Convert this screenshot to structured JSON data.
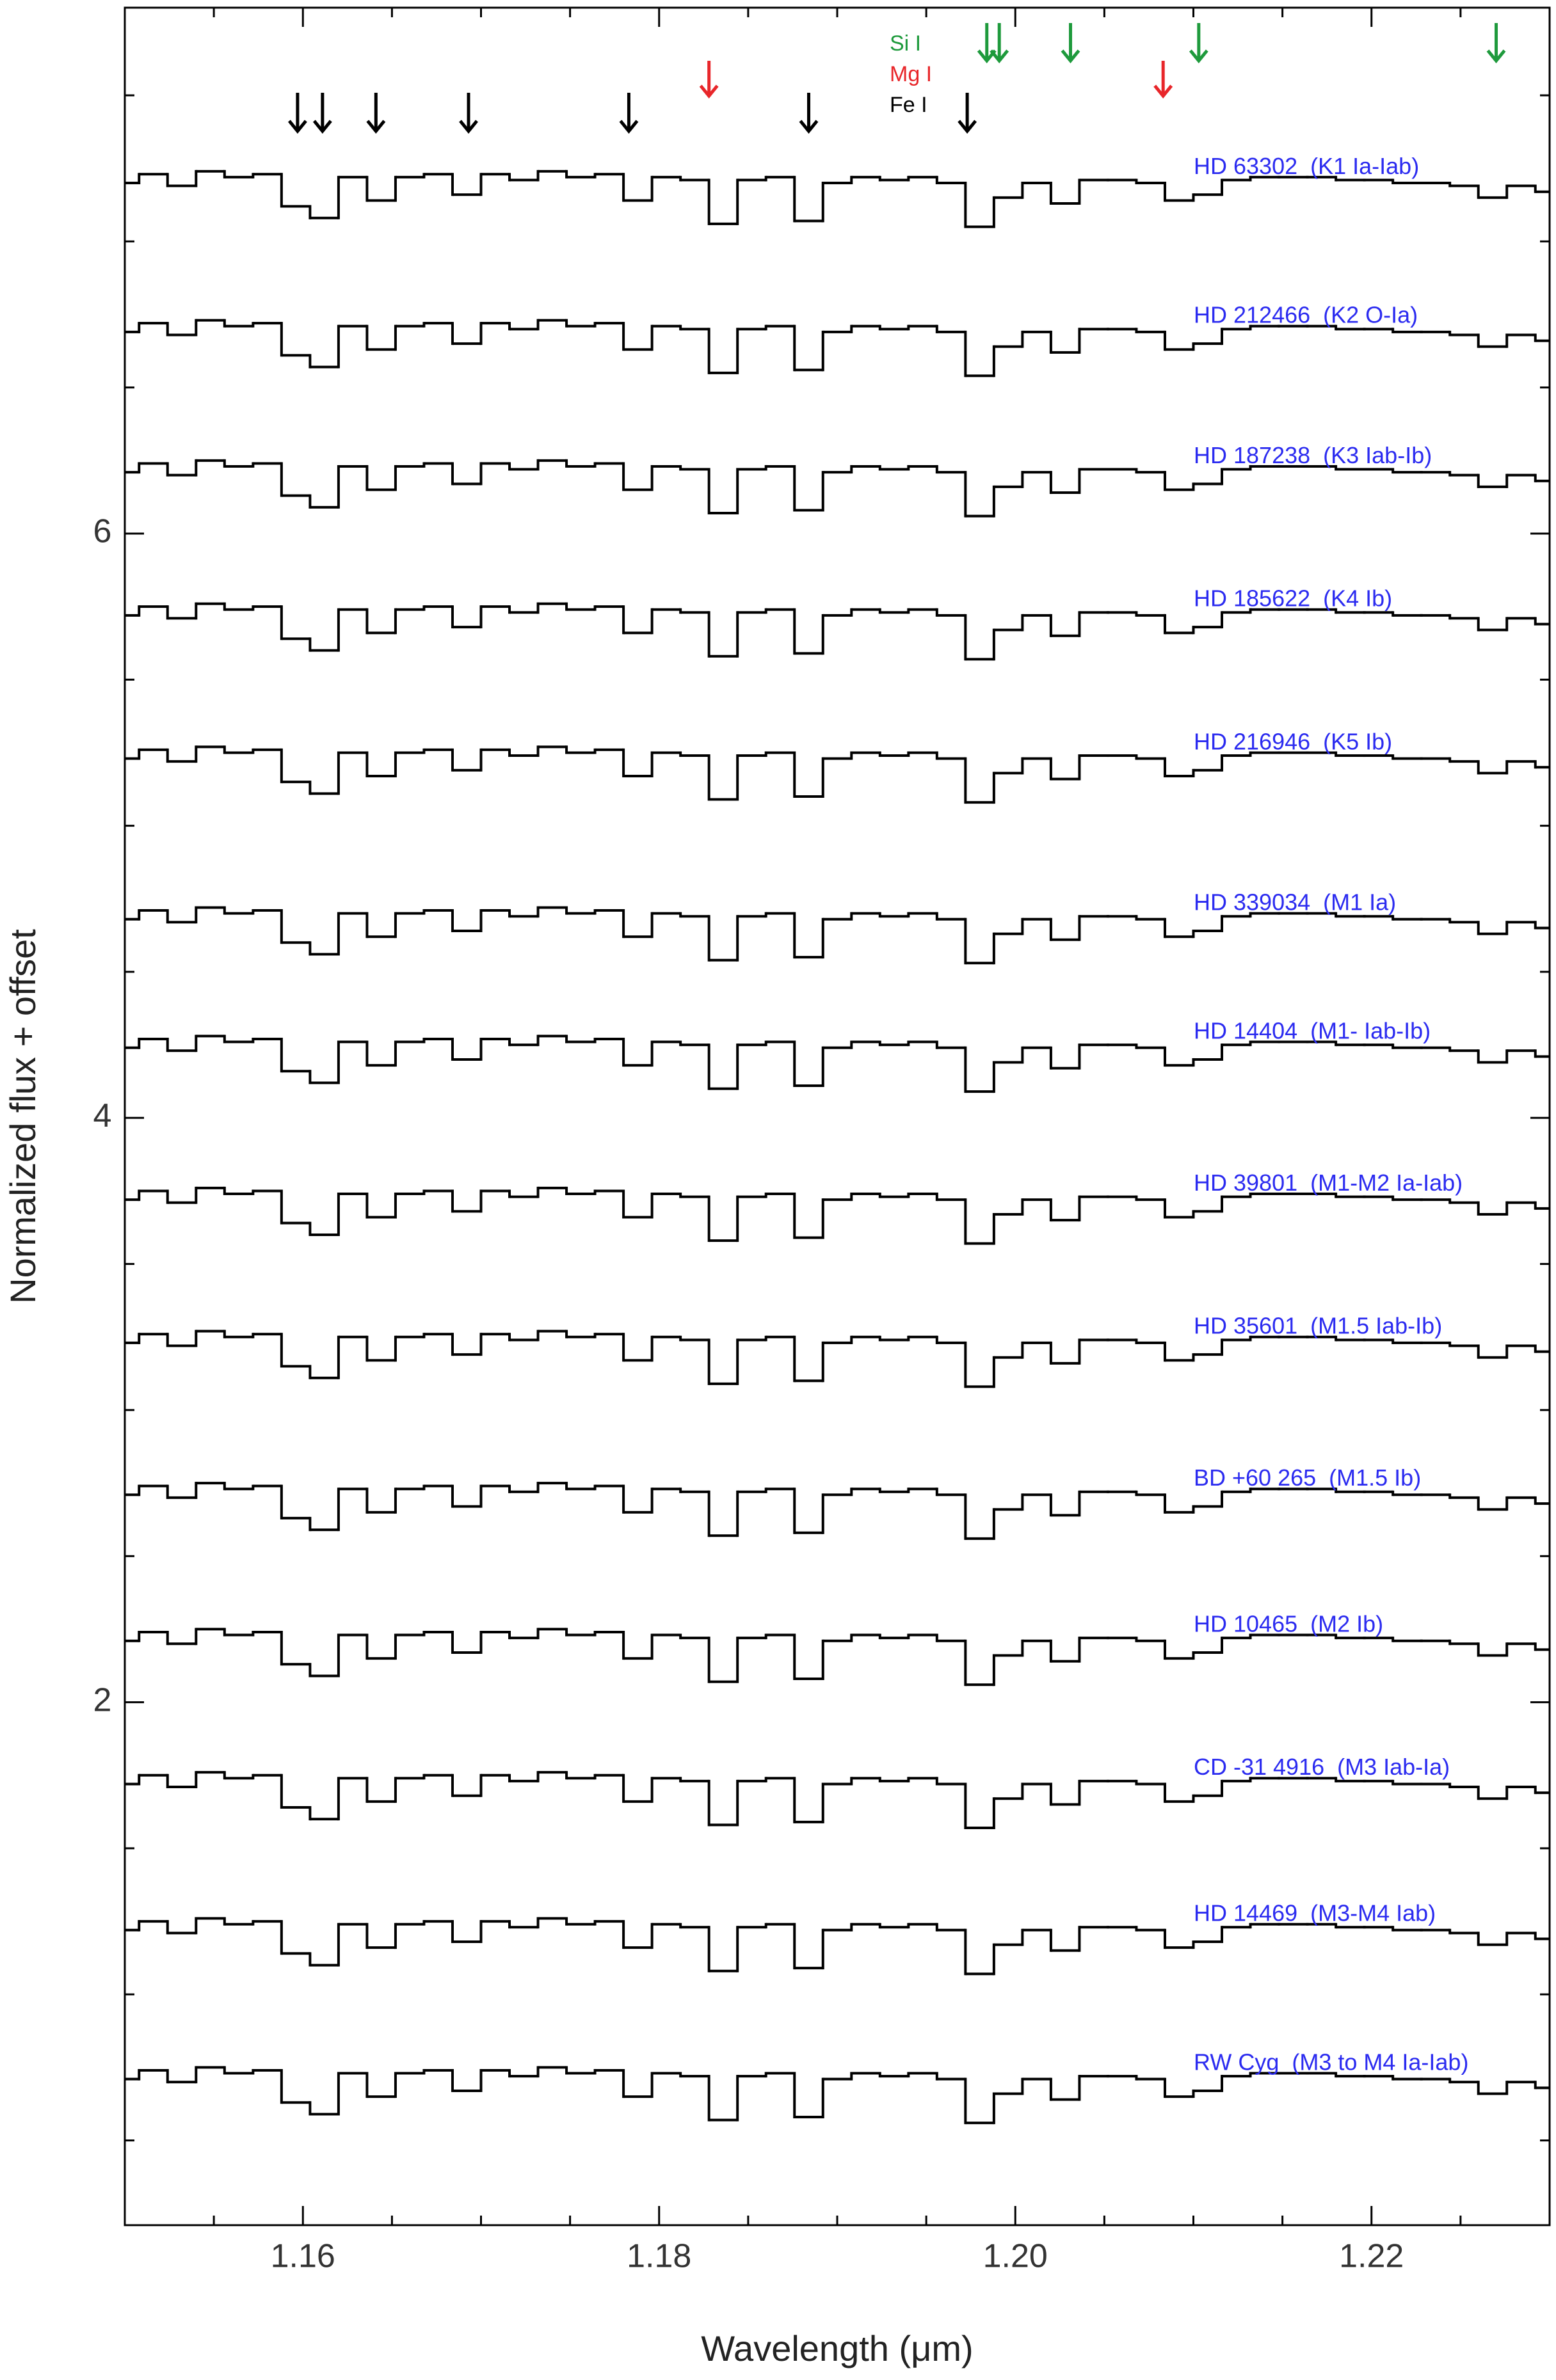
{
  "chart_data": {
    "type": "step",
    "xlabel": "Wavelength (μm)",
    "ylabel": "Normalized flux + offset",
    "xlim": [
      1.15,
      1.23
    ],
    "ylim": [
      0.21,
      7.8
    ],
    "xticks": [
      1.16,
      1.18,
      {
        "value": 1.2,
        "label": "1.20"
      },
      1.22
    ],
    "yticks": [
      2,
      4,
      6
    ],
    "xminor": [
      1.155,
      1.165,
      1.17,
      1.175,
      1.185,
      1.19,
      1.195,
      1.205,
      1.21,
      1.215,
      1.225
    ],
    "yminor": [
      0.5,
      1,
      1.5,
      2.5,
      3,
      3.5,
      4.5,
      5,
      5.5,
      6.5,
      7,
      7.5
    ],
    "label_color": "#2b2bf0",
    "x": [
      1.15,
      1.1516,
      1.1532,
      1.1548,
      1.1564,
      1.158,
      1.1596,
      1.1612,
      1.1628,
      1.1644,
      1.166,
      1.1676,
      1.1692,
      1.1708,
      1.1724,
      1.174,
      1.1756,
      1.1772,
      1.1788,
      1.1804,
      1.182,
      1.1836,
      1.1852,
      1.1868,
      1.1884,
      1.19,
      1.1916,
      1.1932,
      1.1948,
      1.1964,
      1.198,
      1.1996,
      1.2012,
      1.2028,
      1.2044,
      1.206,
      1.2076,
      1.2092,
      1.2108,
      1.2124,
      1.214,
      1.2156,
      1.2172,
      1.2188,
      1.2204,
      1.222,
      1.2236,
      1.2252,
      1.2268,
      1.2284,
      1.23
    ],
    "series": [
      {
        "name": "HD 63302  (K1 Ia-Iab)",
        "color": "#000000",
        "values": [
          7.2,
          7.23,
          7.19,
          7.24,
          7.22,
          7.23,
          7.12,
          7.08,
          7.22,
          7.14,
          7.22,
          7.23,
          7.16,
          7.23,
          7.21,
          7.24,
          7.22,
          7.23,
          7.14,
          7.22,
          7.21,
          7.06,
          7.21,
          7.22,
          7.07,
          7.2,
          7.22,
          7.21,
          7.22,
          7.2,
          7.05,
          7.15,
          7.2,
          7.13,
          7.21,
          7.21,
          7.2,
          7.14,
          7.16,
          7.21,
          7.22,
          7.22,
          7.22,
          7.21,
          7.21,
          7.2,
          7.2,
          7.19,
          7.15,
          7.19,
          7.17
        ]
      },
      {
        "name": "HD 212466  (K2 O-Ia)",
        "color": "#000000",
        "values": [
          6.69,
          6.72,
          6.68,
          6.73,
          6.71,
          6.72,
          6.61,
          6.57,
          6.71,
          6.63,
          6.71,
          6.72,
          6.65,
          6.72,
          6.7,
          6.73,
          6.71,
          6.72,
          6.63,
          6.71,
          6.7,
          6.55,
          6.7,
          6.71,
          6.56,
          6.69,
          6.71,
          6.7,
          6.71,
          6.69,
          6.54,
          6.64,
          6.69,
          6.62,
          6.7,
          6.7,
          6.69,
          6.63,
          6.65,
          6.7,
          6.71,
          6.71,
          6.71,
          6.7,
          6.7,
          6.69,
          6.69,
          6.68,
          6.64,
          6.68,
          6.66
        ]
      },
      {
        "name": "HD 187238  (K3 Iab-Ib)",
        "color": "#000000",
        "values": [
          6.21,
          6.24,
          6.2,
          6.25,
          6.23,
          6.24,
          6.13,
          6.09,
          6.23,
          6.15,
          6.23,
          6.24,
          6.17,
          6.24,
          6.22,
          6.25,
          6.23,
          6.24,
          6.15,
          6.23,
          6.22,
          6.07,
          6.22,
          6.23,
          6.08,
          6.21,
          6.23,
          6.22,
          6.23,
          6.21,
          6.06,
          6.16,
          6.21,
          6.14,
          6.22,
          6.22,
          6.21,
          6.15,
          6.17,
          6.22,
          6.23,
          6.23,
          6.23,
          6.22,
          6.22,
          6.21,
          6.21,
          6.2,
          6.16,
          6.2,
          6.18
        ]
      },
      {
        "name": "HD 185622  (K4 Ib)",
        "color": "#000000",
        "values": [
          5.72,
          5.75,
          5.71,
          5.76,
          5.74,
          5.75,
          5.64,
          5.6,
          5.74,
          5.66,
          5.74,
          5.75,
          5.68,
          5.75,
          5.73,
          5.76,
          5.74,
          5.75,
          5.66,
          5.74,
          5.73,
          5.58,
          5.73,
          5.74,
          5.59,
          5.72,
          5.74,
          5.73,
          5.74,
          5.72,
          5.57,
          5.67,
          5.72,
          5.65,
          5.73,
          5.73,
          5.72,
          5.66,
          5.68,
          5.73,
          5.74,
          5.74,
          5.74,
          5.73,
          5.73,
          5.72,
          5.72,
          5.71,
          5.67,
          5.71,
          5.69
        ]
      },
      {
        "name": "HD 216946  (K5 Ib)",
        "color": "#000000",
        "values": [
          5.23,
          5.26,
          5.22,
          5.27,
          5.25,
          5.26,
          5.15,
          5.11,
          5.25,
          5.17,
          5.25,
          5.26,
          5.19,
          5.26,
          5.24,
          5.27,
          5.25,
          5.26,
          5.17,
          5.25,
          5.24,
          5.09,
          5.24,
          5.25,
          5.1,
          5.23,
          5.25,
          5.24,
          5.25,
          5.23,
          5.08,
          5.18,
          5.23,
          5.16,
          5.24,
          5.24,
          5.23,
          5.17,
          5.19,
          5.24,
          5.25,
          5.25,
          5.25,
          5.24,
          5.24,
          5.23,
          5.23,
          5.22,
          5.18,
          5.22,
          5.2
        ]
      },
      {
        "name": "HD 339034  (M1 Ia)",
        "color": "#000000",
        "values": [
          4.68,
          4.71,
          4.67,
          4.72,
          4.7,
          4.71,
          4.6,
          4.56,
          4.7,
          4.62,
          4.7,
          4.71,
          4.64,
          4.71,
          4.69,
          4.72,
          4.7,
          4.71,
          4.62,
          4.7,
          4.69,
          4.54,
          4.69,
          4.7,
          4.55,
          4.68,
          4.7,
          4.69,
          4.7,
          4.68,
          4.53,
          4.63,
          4.68,
          4.61,
          4.69,
          4.69,
          4.68,
          4.62,
          4.64,
          4.69,
          4.7,
          4.7,
          4.7,
          4.69,
          4.69,
          4.68,
          4.68,
          4.67,
          4.63,
          4.67,
          4.65
        ]
      },
      {
        "name": "HD 14404  (M1- Iab-Ib)",
        "color": "#000000",
        "values": [
          4.24,
          4.27,
          4.23,
          4.28,
          4.26,
          4.27,
          4.16,
          4.12,
          4.26,
          4.18,
          4.26,
          4.27,
          4.2,
          4.27,
          4.25,
          4.28,
          4.26,
          4.27,
          4.18,
          4.26,
          4.25,
          4.1,
          4.25,
          4.26,
          4.11,
          4.24,
          4.26,
          4.25,
          4.26,
          4.24,
          4.09,
          4.19,
          4.24,
          4.17,
          4.25,
          4.25,
          4.24,
          4.18,
          4.2,
          4.25,
          4.26,
          4.26,
          4.26,
          4.25,
          4.25,
          4.24,
          4.24,
          4.23,
          4.19,
          4.23,
          4.21
        ]
      },
      {
        "name": "HD 39801  (M1-M2 Ia-Iab)",
        "color": "#000000",
        "values": [
          3.72,
          3.75,
          3.71,
          3.76,
          3.74,
          3.75,
          3.64,
          3.6,
          3.74,
          3.66,
          3.74,
          3.75,
          3.68,
          3.75,
          3.73,
          3.76,
          3.74,
          3.75,
          3.66,
          3.74,
          3.73,
          3.58,
          3.73,
          3.74,
          3.59,
          3.72,
          3.74,
          3.73,
          3.74,
          3.72,
          3.57,
          3.67,
          3.72,
          3.65,
          3.73,
          3.73,
          3.72,
          3.66,
          3.68,
          3.73,
          3.74,
          3.74,
          3.74,
          3.73,
          3.73,
          3.72,
          3.72,
          3.71,
          3.67,
          3.71,
          3.69
        ]
      },
      {
        "name": "HD 35601  (M1.5 Iab-Ib)",
        "color": "#000000",
        "values": [
          3.23,
          3.26,
          3.22,
          3.27,
          3.25,
          3.26,
          3.15,
          3.11,
          3.25,
          3.17,
          3.25,
          3.26,
          3.19,
          3.26,
          3.24,
          3.27,
          3.25,
          3.26,
          3.17,
          3.25,
          3.24,
          3.09,
          3.24,
          3.25,
          3.1,
          3.23,
          3.25,
          3.24,
          3.25,
          3.23,
          3.08,
          3.18,
          3.23,
          3.16,
          3.24,
          3.24,
          3.23,
          3.17,
          3.19,
          3.24,
          3.25,
          3.25,
          3.25,
          3.24,
          3.24,
          3.23,
          3.23,
          3.22,
          3.18,
          3.22,
          3.2
        ]
      },
      {
        "name": "BD +60 265  (M1.5 Ib)",
        "color": "#000000",
        "values": [
          2.71,
          2.74,
          2.7,
          2.75,
          2.73,
          2.74,
          2.63,
          2.59,
          2.73,
          2.65,
          2.73,
          2.74,
          2.67,
          2.74,
          2.72,
          2.75,
          2.73,
          2.74,
          2.65,
          2.73,
          2.72,
          2.57,
          2.72,
          2.73,
          2.58,
          2.71,
          2.73,
          2.72,
          2.73,
          2.71,
          2.56,
          2.66,
          2.71,
          2.64,
          2.72,
          2.72,
          2.71,
          2.65,
          2.67,
          2.72,
          2.73,
          2.73,
          2.73,
          2.72,
          2.72,
          2.71,
          2.71,
          2.7,
          2.66,
          2.7,
          2.68
        ]
      },
      {
        "name": "HD 10465  (M2 Ib)",
        "color": "#000000",
        "values": [
          2.21,
          2.24,
          2.2,
          2.25,
          2.23,
          2.24,
          2.13,
          2.09,
          2.23,
          2.15,
          2.23,
          2.24,
          2.17,
          2.24,
          2.22,
          2.25,
          2.23,
          2.24,
          2.15,
          2.23,
          2.22,
          2.07,
          2.22,
          2.23,
          2.08,
          2.21,
          2.23,
          2.22,
          2.23,
          2.21,
          2.06,
          2.16,
          2.21,
          2.14,
          2.22,
          2.22,
          2.21,
          2.15,
          2.17,
          2.22,
          2.23,
          2.23,
          2.23,
          2.22,
          2.22,
          2.21,
          2.21,
          2.2,
          2.16,
          2.2,
          2.18
        ]
      },
      {
        "name": "CD -31 4916  (M3 Iab-Ia)",
        "color": "#000000",
        "values": [
          1.72,
          1.75,
          1.71,
          1.76,
          1.74,
          1.75,
          1.64,
          1.6,
          1.74,
          1.66,
          1.74,
          1.75,
          1.68,
          1.75,
          1.73,
          1.76,
          1.74,
          1.75,
          1.66,
          1.74,
          1.73,
          1.58,
          1.73,
          1.74,
          1.59,
          1.72,
          1.74,
          1.73,
          1.74,
          1.72,
          1.57,
          1.67,
          1.72,
          1.65,
          1.73,
          1.73,
          1.72,
          1.66,
          1.68,
          1.73,
          1.74,
          1.74,
          1.74,
          1.73,
          1.73,
          1.72,
          1.72,
          1.71,
          1.67,
          1.71,
          1.69
        ]
      },
      {
        "name": "HD 14469  (M3-M4 Iab)",
        "color": "#000000",
        "values": [
          1.22,
          1.25,
          1.21,
          1.26,
          1.24,
          1.25,
          1.14,
          1.1,
          1.24,
          1.16,
          1.24,
          1.25,
          1.18,
          1.25,
          1.23,
          1.26,
          1.24,
          1.25,
          1.16,
          1.24,
          1.23,
          1.08,
          1.23,
          1.24,
          1.09,
          1.22,
          1.24,
          1.23,
          1.24,
          1.22,
          1.07,
          1.17,
          1.22,
          1.15,
          1.23,
          1.23,
          1.22,
          1.16,
          1.18,
          1.23,
          1.24,
          1.24,
          1.24,
          1.23,
          1.23,
          1.22,
          1.22,
          1.21,
          1.17,
          1.21,
          1.19
        ]
      },
      {
        "name": "RW Cyg  (M3 to M4 Ia-Iab)",
        "color": "#000000",
        "values": [
          0.71,
          0.74,
          0.7,
          0.75,
          0.73,
          0.74,
          0.63,
          0.59,
          0.73,
          0.65,
          0.73,
          0.74,
          0.67,
          0.74,
          0.72,
          0.75,
          0.73,
          0.74,
          0.65,
          0.73,
          0.72,
          0.57,
          0.72,
          0.73,
          0.58,
          0.71,
          0.73,
          0.72,
          0.73,
          0.71,
          0.56,
          0.66,
          0.71,
          0.64,
          0.72,
          0.72,
          0.71,
          0.65,
          0.67,
          0.72,
          0.73,
          0.73,
          0.73,
          0.72,
          0.72,
          0.71,
          0.71,
          0.7,
          0.66,
          0.7,
          0.68
        ]
      }
    ],
    "line_markers": [
      {
        "name": "Si I",
        "color": "#1e9a3c",
        "x": [
          1.1984,
          1.1991,
          1.2031,
          1.2103,
          1.227
        ]
      },
      {
        "name": "Mg I",
        "color": "#e8262a",
        "x": [
          1.1828,
          1.2083
        ]
      },
      {
        "name": "Fe I",
        "color": "#000000",
        "x": [
          1.1597,
          1.1611,
          1.1641,
          1.1693,
          1.1783,
          1.1884,
          1.1973
        ]
      }
    ]
  }
}
